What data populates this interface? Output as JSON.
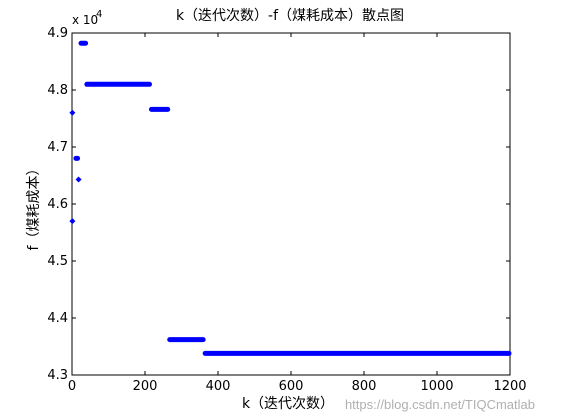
{
  "chart_data": {
    "type": "scatter",
    "title": "k（迭代次数）-f（煤耗成本）散点图",
    "xlabel": "k（迭代次数）",
    "ylabel": "f（煤耗成本）",
    "xlim": [
      0,
      1200
    ],
    "ylim": [
      43000,
      49000
    ],
    "xticks": [
      0,
      200,
      400,
      600,
      800,
      1000,
      1200
    ],
    "yticks": [
      43000,
      44000,
      45000,
      46000,
      47000,
      48000,
      49000
    ],
    "yticklabels": [
      "4.3",
      "4.4",
      "4.5",
      "4.6",
      "4.7",
      "4.8",
      "4.9"
    ],
    "y_exponent": "x 10",
    "y_exponent_power": "4",
    "grid": false,
    "marker_color": "#0000ff",
    "series": [
      {
        "segments": [
          {
            "x_start": 1,
            "x_end": 1,
            "y": 47600
          },
          {
            "x_start": 1,
            "x_end": 1,
            "y": 45700
          },
          {
            "x_start": 8,
            "x_end": 18,
            "y": 46800
          },
          {
            "x_start": 18,
            "x_end": 22,
            "y": 46430
          },
          {
            "x_start": 22,
            "x_end": 40,
            "y": 48820
          },
          {
            "x_start": 38,
            "x_end": 215,
            "y": 48100
          },
          {
            "x_start": 215,
            "x_end": 265,
            "y": 47660
          },
          {
            "x_start": 265,
            "x_end": 362,
            "y": 43620
          },
          {
            "x_start": 362,
            "x_end": 1200,
            "y": 43380
          }
        ]
      }
    ]
  },
  "watermark": "https://blog.csdn.net/TIQCmatlab"
}
